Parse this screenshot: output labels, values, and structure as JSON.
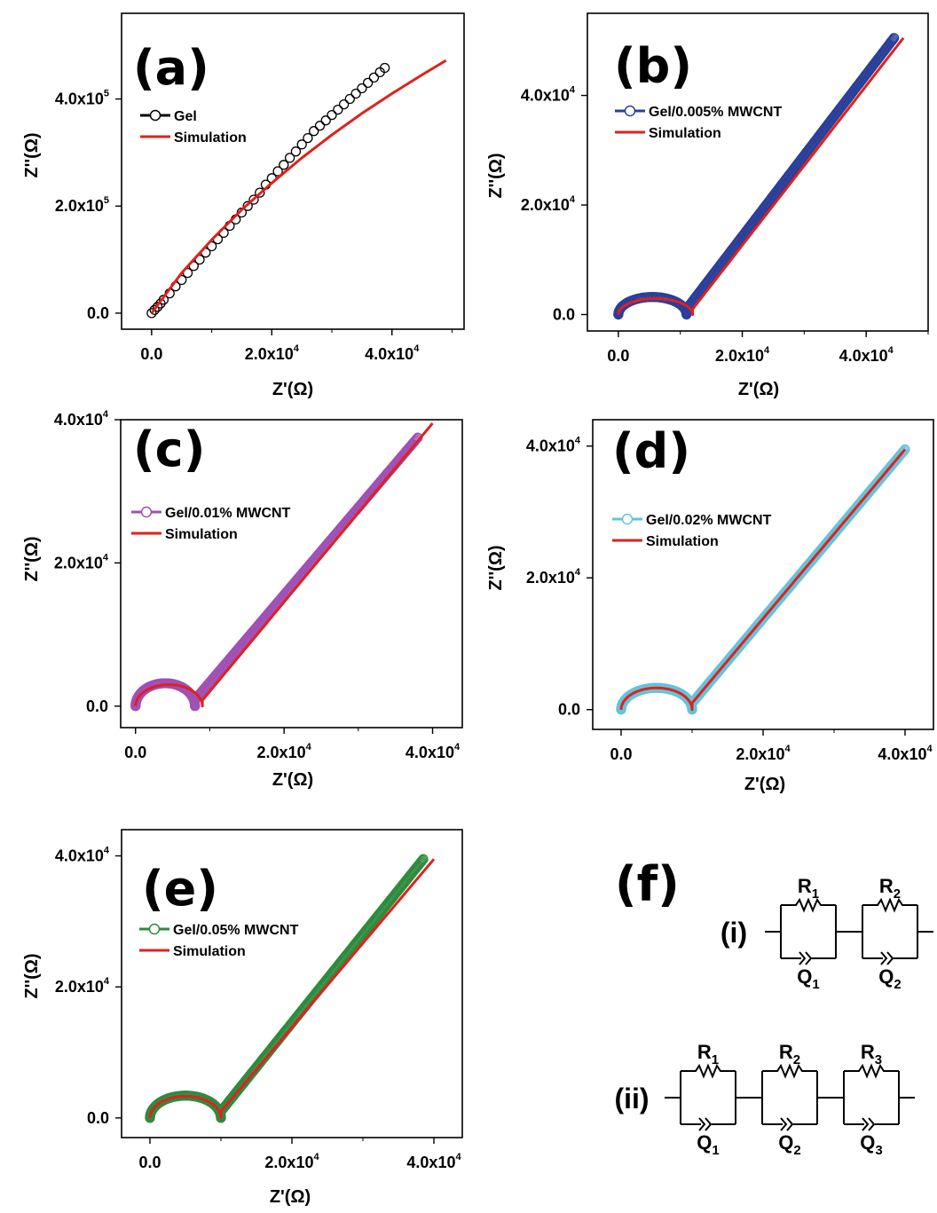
{
  "chart_data": [
    {
      "type": "scatter",
      "panel": "(a)",
      "xlabel": "Z'(Ω)",
      "ylabel": "Z''(Ω)",
      "xlim": [
        -5000,
        52000
      ],
      "ylim": [
        -30000,
        560000
      ],
      "x_ticks": [
        {
          "value": 0,
          "label": "0.0"
        },
        {
          "value": 20000,
          "label": "2.0x10",
          "exp": "4"
        },
        {
          "value": 40000,
          "label": "4.0x10",
          "exp": "4"
        }
      ],
      "y_ticks": [
        {
          "value": 0,
          "label": "0.0"
        },
        {
          "value": 200000,
          "label": "2.0x10",
          "exp": "5"
        },
        {
          "value": 400000,
          "label": "4.0x10",
          "exp": "5"
        }
      ],
      "legend_position": "upper-left",
      "series": [
        {
          "name": "Gel",
          "kind": "markers",
          "color": "#000000",
          "x": [
            0,
            500,
            1000,
            1500,
            2000,
            3000,
            4000,
            5000,
            6000,
            7000,
            8000,
            9000,
            10000,
            11000,
            12000,
            13000,
            14000,
            15000,
            16000,
            17000,
            18000,
            19000,
            20000,
            21000,
            22000,
            23000,
            24000,
            25000,
            26000,
            27000,
            28000,
            29000,
            30000,
            31000,
            32000,
            33000,
            34000,
            35000,
            36000,
            37000,
            38000,
            38800
          ],
          "y": [
            0,
            6000,
            12000,
            18000,
            25000,
            37000,
            50000,
            62000,
            75000,
            88000,
            100000,
            113000,
            125000,
            138000,
            150000,
            163000,
            175000,
            188000,
            200000,
            212000,
            225000,
            240000,
            252000,
            265000,
            277000,
            290000,
            302000,
            315000,
            327000,
            340000,
            350000,
            360000,
            370000,
            380000,
            390000,
            400000,
            410000,
            420000,
            430000,
            440000,
            450000,
            458000
          ]
        },
        {
          "name": "Simulation",
          "kind": "line",
          "color": "#e0211d",
          "x": [
            0,
            5000,
            10000,
            15000,
            20000,
            25000,
            30000,
            35000,
            40000,
            45000,
            49000
          ],
          "y": [
            0,
            75000,
            137000,
            193000,
            243000,
            290000,
            333000,
            373000,
            410000,
            445000,
            472000
          ]
        }
      ]
    },
    {
      "type": "scatter",
      "panel": "(b)",
      "xlabel": "Z'(Ω)",
      "ylabel": "Z''(Ω)",
      "xlim": [
        -5000,
        50000
      ],
      "ylim": [
        -3000,
        55000
      ],
      "x_ticks": [
        {
          "value": 0,
          "label": "0.0"
        },
        {
          "value": 20000,
          "label": "2.0x10",
          "exp": "4"
        },
        {
          "value": 40000,
          "label": "4.0x10",
          "exp": "4"
        }
      ],
      "y_ticks": [
        {
          "value": 0,
          "label": "0.0"
        },
        {
          "value": 20000,
          "label": "2.0x10",
          "exp": "4"
        },
        {
          "value": 40000,
          "label": "4.0x10",
          "exp": "4"
        }
      ],
      "legend_position": "upper-left",
      "series": [
        {
          "name": "Gel/0.005% MWCNT",
          "kind": "markers-dense",
          "color": "#2b3f99",
          "model": {
            "arc_x0": 0,
            "arc_x1": 11000,
            "arc_height": 3200,
            "line_x0": 11000,
            "line_y0": 1000,
            "line_x1": 44500,
            "line_y1": 50500
          }
        },
        {
          "name": "Simulation",
          "kind": "line",
          "color": "#e0211d",
          "model": {
            "arc_x0": 0,
            "arc_x1": 12000,
            "arc_height": 2900,
            "line_x0": 12000,
            "line_y0": 1000,
            "line_x1": 46000,
            "line_y1": 50500
          }
        }
      ]
    },
    {
      "type": "scatter",
      "panel": "(c)",
      "xlabel": "Z'(Ω)",
      "ylabel": "Z''(Ω)",
      "xlim": [
        -2000,
        44000
      ],
      "ylim": [
        -3000,
        40000
      ],
      "x_ticks": [
        {
          "value": 0,
          "label": "0.0"
        },
        {
          "value": 20000,
          "label": "2.0x10",
          "exp": "4"
        },
        {
          "value": 40000,
          "label": "4.0x10",
          "exp": "4"
        }
      ],
      "y_ticks": [
        {
          "value": 0,
          "label": "0.0"
        },
        {
          "value": 20000,
          "label": "2.0x10",
          "exp": "4"
        },
        {
          "value": 40000,
          "label": "4.0x10",
          "exp": "4"
        }
      ],
      "legend_position": "upper-left",
      "series": [
        {
          "name": "Gel/0.01% MWCNT",
          "kind": "markers-dense",
          "color": "#a050b4",
          "model": {
            "arc_x0": 0,
            "arc_x1": 8000,
            "arc_height": 3200,
            "line_x0": 8000,
            "line_y0": 900,
            "line_x1": 38000,
            "line_y1": 37500
          }
        },
        {
          "name": "Simulation",
          "kind": "line",
          "color": "#e0211d",
          "model": {
            "arc_x0": 0,
            "arc_x1": 9000,
            "arc_height": 3000,
            "line_x0": 9000,
            "line_y0": 800,
            "line_x1": 40000,
            "line_y1": 39500
          }
        }
      ]
    },
    {
      "type": "scatter",
      "panel": "(d)",
      "xlabel": "Z'(Ω)",
      "ylabel": "Z''(Ω)",
      "xlim": [
        -4000,
        44000
      ],
      "ylim": [
        -3000,
        44000
      ],
      "x_ticks": [
        {
          "value": 0,
          "label": "0.0"
        },
        {
          "value": 20000,
          "label": "2.0x10",
          "exp": "4"
        },
        {
          "value": 40000,
          "label": "4.0x10",
          "exp": "4"
        }
      ],
      "y_ticks": [
        {
          "value": 0,
          "label": "0.0"
        },
        {
          "value": 20000,
          "label": "2.0x10",
          "exp": "4"
        },
        {
          "value": 40000,
          "label": "4.0x10",
          "exp": "4"
        }
      ],
      "legend_position": "upper-left",
      "series": [
        {
          "name": "Gel/0.02% MWCNT",
          "kind": "markers-dense",
          "color": "#66c3d9",
          "model": {
            "arc_x0": 0,
            "arc_x1": 10000,
            "arc_height": 3300,
            "line_x0": 10000,
            "line_y0": 1000,
            "line_x1": 40000,
            "line_y1": 39500
          }
        },
        {
          "name": "Simulation",
          "kind": "line",
          "color": "#e0211d",
          "model": {
            "arc_x0": 0,
            "arc_x1": 10000,
            "arc_height": 3300,
            "line_x0": 10000,
            "line_y0": 1000,
            "line_x1": 40000,
            "line_y1": 39500
          }
        }
      ]
    },
    {
      "type": "scatter",
      "panel": "(e)",
      "xlabel": "Z'(Ω)",
      "ylabel": "Z''(Ω)",
      "xlim": [
        -4000,
        44000
      ],
      "ylim": [
        -3000,
        44000
      ],
      "x_ticks": [
        {
          "value": 0,
          "label": "0.0"
        },
        {
          "value": 20000,
          "label": "2.0x10",
          "exp": "4"
        },
        {
          "value": 40000,
          "label": "4.0x10",
          "exp": "4"
        }
      ],
      "y_ticks": [
        {
          "value": 0,
          "label": "0.0"
        },
        {
          "value": 20000,
          "label": "2.0x10",
          "exp": "4"
        },
        {
          "value": 40000,
          "label": "4.0x10",
          "exp": "4"
        }
      ],
      "legend_position": "upper-left",
      "series": [
        {
          "name": "Gel/0.05% MWCNT",
          "kind": "markers-dense",
          "color": "#2e8b3e",
          "model": {
            "arc_x0": 0,
            "arc_x1": 10000,
            "arc_height": 3400,
            "line_x0": 10000,
            "line_y0": 1000,
            "line_x1": 38500,
            "line_y1": 39500
          }
        },
        {
          "name": "Simulation",
          "kind": "line",
          "color": "#e0211d",
          "model": {
            "arc_x0": 0,
            "arc_x1": 10000,
            "arc_height": 3300,
            "line_x0": 10000,
            "line_y0": 1000,
            "line_x1": 40000,
            "line_y1": 39500
          }
        }
      ]
    }
  ],
  "circuit_panel": {
    "label": "(f)",
    "circuits": [
      {
        "label": "(i)",
        "elements": [
          {
            "r": "R",
            "r_sub": "1",
            "q": "Q",
            "q_sub": "1"
          },
          {
            "r": "R",
            "r_sub": "2",
            "q": "Q",
            "q_sub": "2"
          }
        ]
      },
      {
        "label": "(ii)",
        "elements": [
          {
            "r": "R",
            "r_sub": "1",
            "q": "Q",
            "q_sub": "1"
          },
          {
            "r": "R",
            "r_sub": "2",
            "q": "Q",
            "q_sub": "2"
          },
          {
            "r": "R",
            "r_sub": "3",
            "q": "Q",
            "q_sub": "3"
          }
        ]
      }
    ]
  }
}
